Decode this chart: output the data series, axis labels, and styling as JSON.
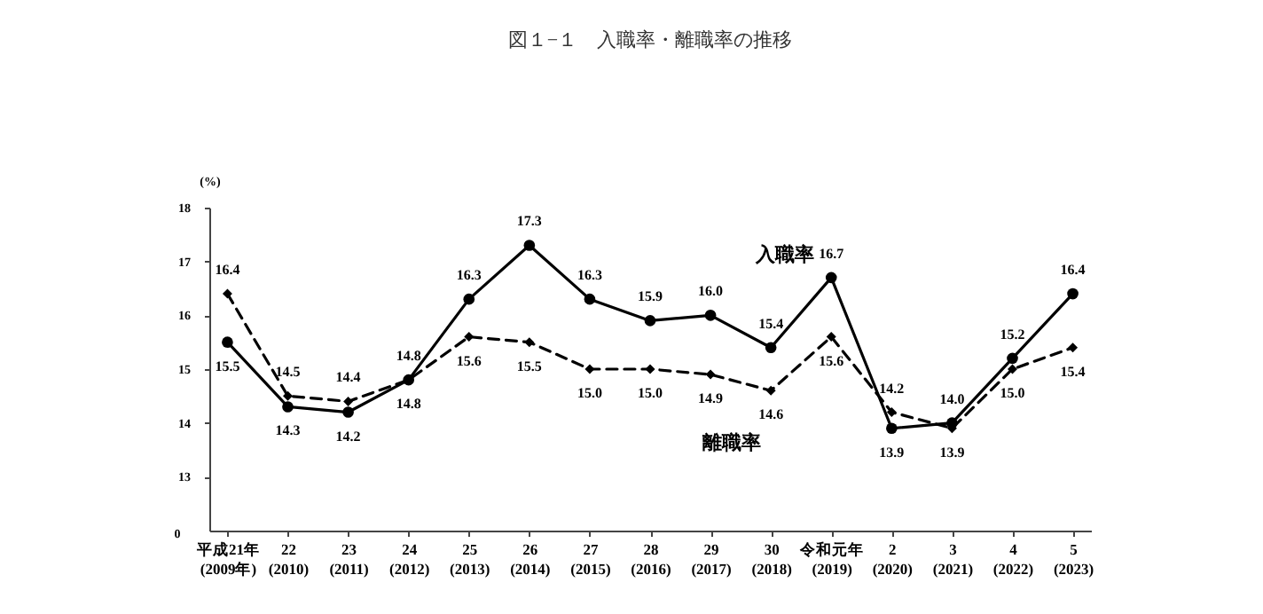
{
  "chart_data": {
    "type": "line",
    "title": "図１−１　入職率・離職率の推移",
    "ylabel": "(%)",
    "categories": [
      "平成21年\n(2009年)",
      "22\n(2010)",
      "23\n(2011)",
      "24\n(2012)",
      "25\n(2013)",
      "26\n(2014)",
      "27\n(2015)",
      "28\n(2016)",
      "29\n(2017)",
      "30\n(2018)",
      "令和元年\n(2019)",
      "2\n(2020)",
      "3\n(2021)",
      "4\n(2022)",
      "5\n(2023)"
    ],
    "series": [
      {
        "name": "入職率",
        "color": "#000000",
        "marker": "circle",
        "line_style": "solid",
        "values": [
          15.5,
          14.3,
          14.2,
          14.8,
          16.3,
          17.3,
          16.3,
          15.9,
          16.0,
          15.4,
          16.7,
          13.9,
          14.0,
          15.2,
          16.4
        ],
        "value_labels": [
          "15.5",
          "14.3",
          "14.2",
          "14.8",
          "16.3",
          "17.3",
          "16.3",
          "15.9",
          "16.0",
          "15.4",
          "16.7",
          "13.9",
          "14.0",
          "15.2",
          "16.4"
        ]
      },
      {
        "name": "離職率",
        "color": "#000000",
        "marker": "diamond",
        "line_style": "dashed",
        "values": [
          16.4,
          14.5,
          14.4,
          14.8,
          15.6,
          15.5,
          15.0,
          15.0,
          14.9,
          14.6,
          15.6,
          14.2,
          13.9,
          15.0,
          15.4
        ],
        "value_labels": [
          "16.4",
          "14.5",
          "14.4",
          "14.8",
          "15.6",
          "15.5",
          "15.0",
          "15.0",
          "14.9",
          "14.6",
          "15.6",
          "14.2",
          "13.9",
          "15.0",
          "15.4"
        ]
      }
    ],
    "ylim": [
      12,
      18
    ],
    "yticks": [
      13,
      14,
      15,
      16,
      17,
      18
    ],
    "annotations": [
      "0"
    ],
    "grid": false,
    "legend": false
  }
}
